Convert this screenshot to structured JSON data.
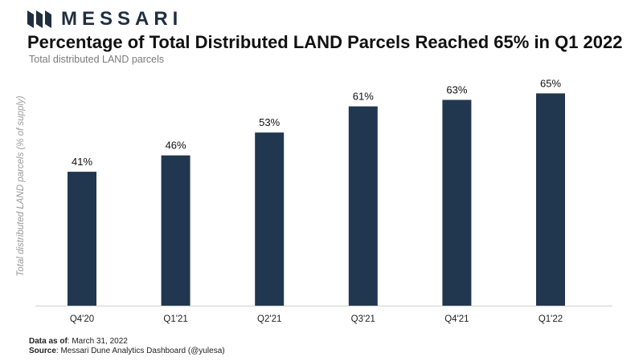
{
  "header": {
    "brand": "MESSARI",
    "title": "Percentage of Total Distributed LAND Parcels Reached 65% in Q1 2022",
    "subtitle": "Total distributed LAND parcels"
  },
  "footer": {
    "data_as_of_label": "Data as of",
    "data_as_of_value": ": March 31, 2022",
    "source_label": "Source",
    "source_value": ": Messari Dune Analytics Dashboard (@yulesa)"
  },
  "colors": {
    "bar": "#21374f",
    "logo": "#1f2f40"
  },
  "chart_data": {
    "type": "bar",
    "title": "Percentage of Total Distributed LAND Parcels Reached 65% in Q1 2022",
    "subtitle": "Total distributed LAND parcels",
    "ylabel": "Total distributed LAND parcels (% of supply)",
    "xlabel": "",
    "categories": [
      "Q4'20",
      "Q1'21",
      "Q2'21",
      "Q3'21",
      "Q4'21",
      "Q1'22"
    ],
    "values": [
      41,
      46,
      53,
      61,
      63,
      65
    ],
    "data_labels": [
      "41%",
      "46%",
      "53%",
      "61%",
      "63%",
      "65%"
    ],
    "ylim": [
      0,
      70
    ],
    "grid": false,
    "legend": "none"
  }
}
